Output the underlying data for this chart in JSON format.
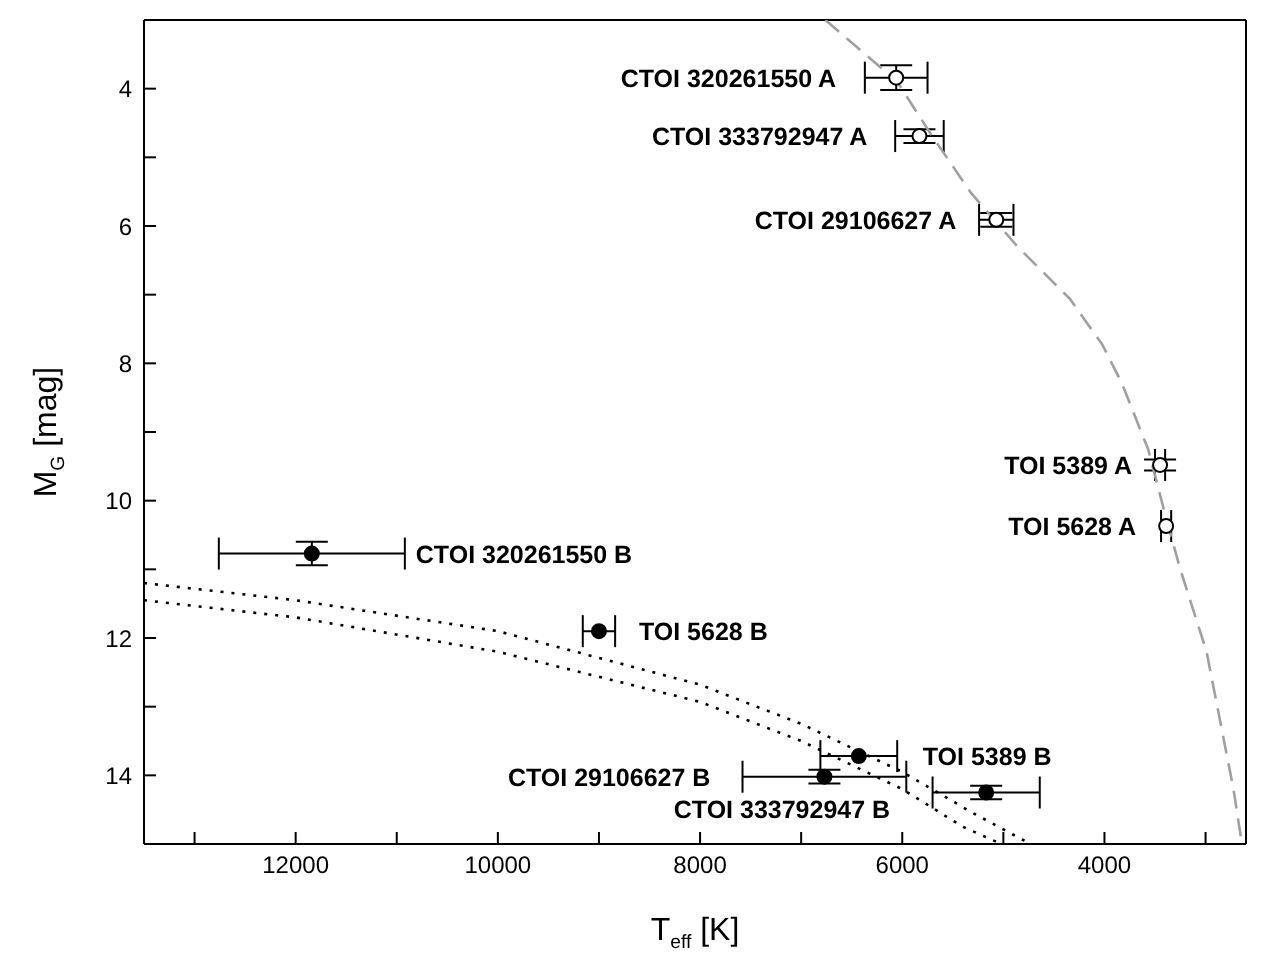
{
  "chart_data": {
    "type": "scatter",
    "xlabel": "T$_{eff}$ [K]",
    "ylabel": "M$_{G}$ [mag]",
    "xlim": [
      13500,
      2600
    ],
    "ylim": [
      15,
      3
    ],
    "xticks": [
      {
        "value": 13000,
        "label": null
      },
      12000,
      {
        "value": 11000,
        "label": null
      },
      10000,
      {
        "value": 9000,
        "label": null
      },
      8000,
      {
        "value": 7000,
        "label": null
      },
      6000,
      {
        "value": 5000,
        "label": null
      },
      4000,
      {
        "value": 3000,
        "label": null
      }
    ],
    "yticks": [
      {
        "value": 3,
        "label": null
      },
      4,
      {
        "value": 5,
        "label": null
      },
      6,
      {
        "value": 7,
        "label": null
      },
      8,
      {
        "value": 9,
        "label": null
      },
      10,
      {
        "value": 11,
        "label": null
      },
      12,
      {
        "value": 13,
        "label": null
      },
      14,
      {
        "value": 15,
        "label": null
      }
    ],
    "marker": "circle",
    "series": [
      {
        "type": "line",
        "color": "#a0a0a0",
        "line_style": "dashed",
        "marker": "none",
        "x": [
          6760,
          6050,
          5700,
          5314,
          4860,
          4343,
          4020,
          3825,
          3566,
          3400,
          3250,
          2990,
          2724,
          2640
        ],
        "values": [
          3,
          3.9,
          4.7,
          5.53,
          6.3,
          7.06,
          7.73,
          8.3,
          9.26,
          10.2,
          11,
          12.2,
          14.2,
          15
        ]
      },
      {
        "type": "line",
        "color": "#000000",
        "line_style": "dotted",
        "marker": "none",
        "x": [
          13500,
          12000,
          10000,
          8000,
          7000,
          6000,
          5300,
          4730
        ],
        "values": [
          11.2,
          11.45,
          11.9,
          12.68,
          13.25,
          13.95,
          14.55,
          15
        ]
      },
      {
        "type": "line",
        "color": "#000000",
        "line_style": "dotted",
        "marker": "none",
        "x": [
          13500,
          12000,
          10000,
          8000,
          7000,
          6000,
          5400,
          5020
        ],
        "values": [
          11.45,
          11.7,
          12.2,
          12.93,
          13.5,
          14.2,
          14.75,
          15
        ]
      },
      {
        "color": "#ffffff",
        "x": [
          6060,
          5830,
          5070,
          3450,
          3390
        ],
        "values": [
          3.84,
          4.69,
          5.91,
          9.48,
          10.37
        ],
        "errors": [
          0.18,
          0.1,
          0.1,
          0.08,
          null
        ],
        "xerrors": [
          310,
          240,
          170,
          50,
          50
        ]
      },
      {
        "color": "#000000",
        "x": [
          11840,
          9000,
          6430,
          6770,
          5170
        ],
        "values": [
          10.77,
          11.9,
          13.72,
          14.02,
          14.25
        ],
        "errors": [
          0.17,
          null,
          null,
          0.1,
          0.1
        ],
        "xerrors": [
          920,
          160,
          380,
          810,
          530
        ]
      }
    ],
    "annotations": [
      "CTOI 320261550 A",
      "CTOI 333792947 A",
      "CTOI 29106627 A",
      "TOI 5389 A",
      "TOI 5628 A",
      "CTOI 320261550 B",
      "TOI 5628 B",
      "TOI 5389 B",
      "CTOI 29106627 B",
      "CTOI 333792947 B"
    ]
  }
}
